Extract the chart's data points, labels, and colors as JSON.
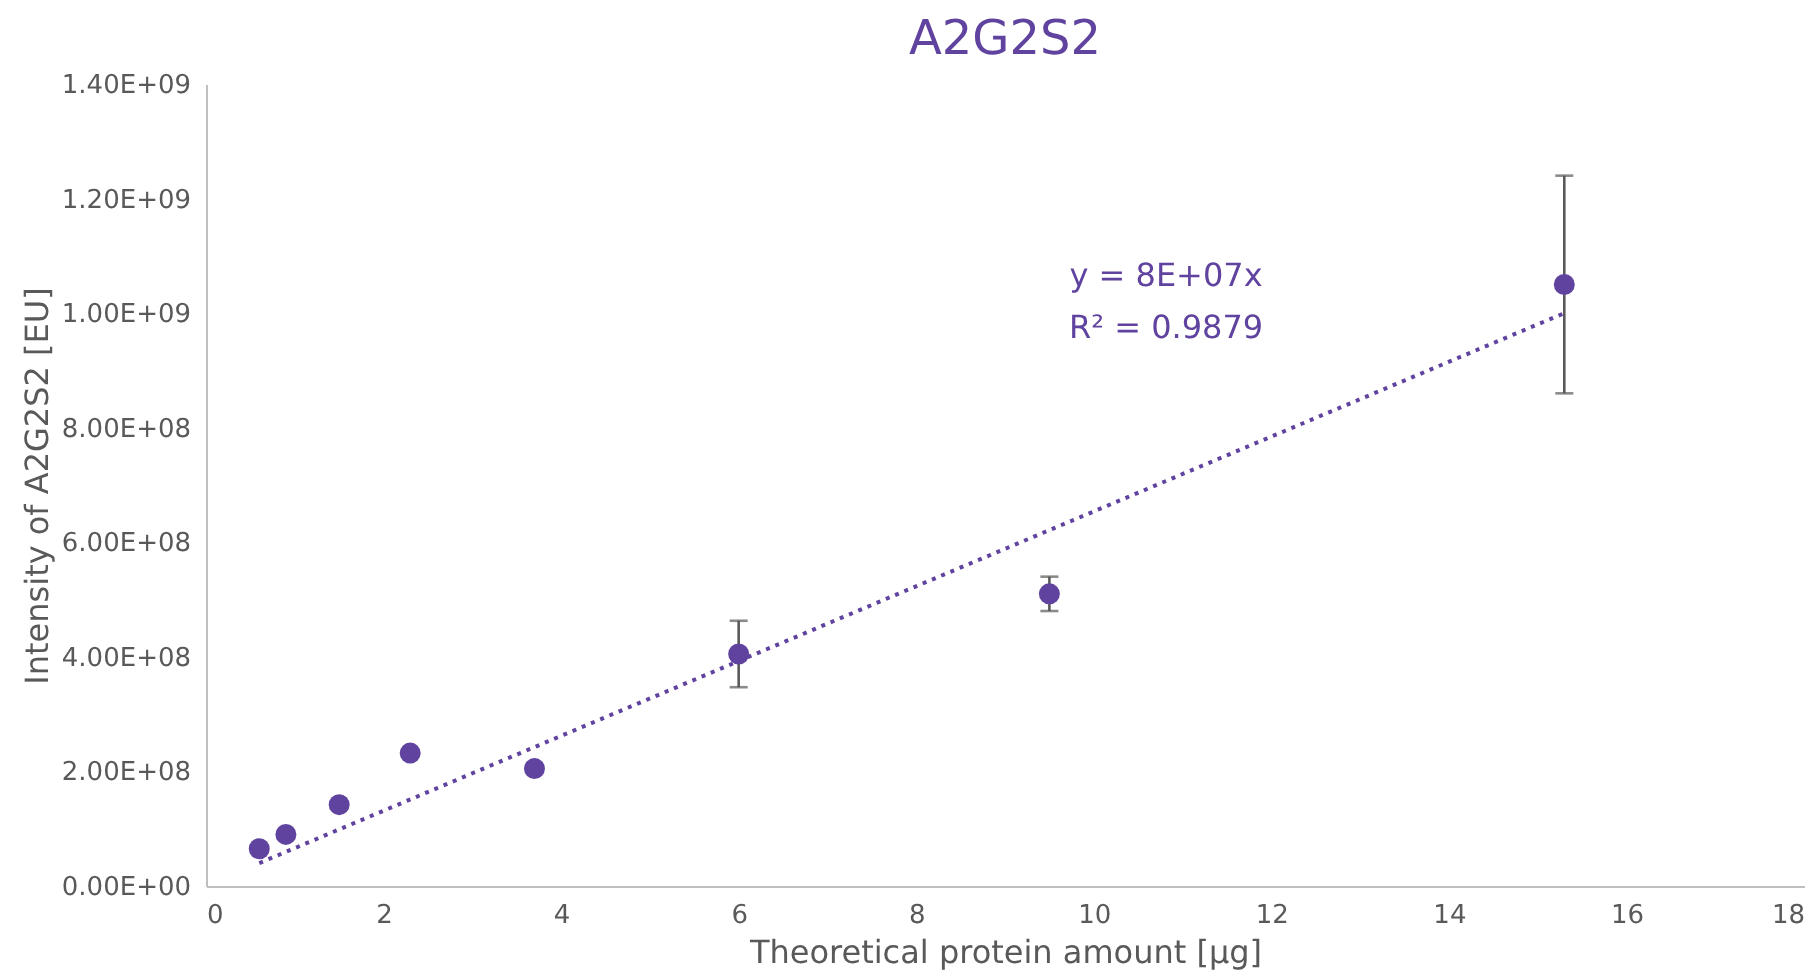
{
  "chart_data": {
    "type": "scatter",
    "title": "A2G2S2",
    "xlabel": "Theoretical protein amount [µg]",
    "ylabel": "Intensity of A2G2S2  [EU]",
    "x": [
      0.6,
      0.9,
      1.5,
      2.3,
      3.7,
      6.0,
      9.5,
      15.3
    ],
    "series": [
      {
        "color": "#60439f",
        "values": [
          65000000,
          90000000,
          142000000,
          232000000,
          205000000,
          405000000,
          510000000,
          1050000000
        ],
        "errors": [
          null,
          null,
          null,
          null,
          null,
          58000000,
          30000000,
          190000000
        ]
      },
      {
        "type": "line",
        "color": "#60439f",
        "line_style": "dotted",
        "marker": "none",
        "x": [
          0.6,
          15.3
        ],
        "values": [
          40000000,
          1000000000
        ]
      }
    ],
    "marker": "circle",
    "xlim": [
      0,
      18
    ],
    "xticks": [
      0,
      2,
      4,
      6,
      8,
      10,
      12,
      14,
      16,
      18
    ],
    "ylim": [
      0,
      1400000000
    ],
    "yticks": [
      {
        "value": 0,
        "label": "0.00E+00"
      },
      {
        "value": 200000000,
        "label": "2.00E+08"
      },
      {
        "value": 400000000,
        "label": "4.00E+08"
      },
      {
        "value": 600000000,
        "label": "6.00E+08"
      },
      {
        "value": 800000000,
        "label": "8.00E+08"
      },
      {
        "value": 1000000000,
        "label": "1.00E+09"
      },
      {
        "value": 1200000000,
        "label": "1.20E+09"
      },
      {
        "value": 1400000000,
        "label": "1.40E+09"
      }
    ],
    "grid": false,
    "annotations": [
      "y = 8E+07x",
      "R² = 0.9879"
    ]
  }
}
